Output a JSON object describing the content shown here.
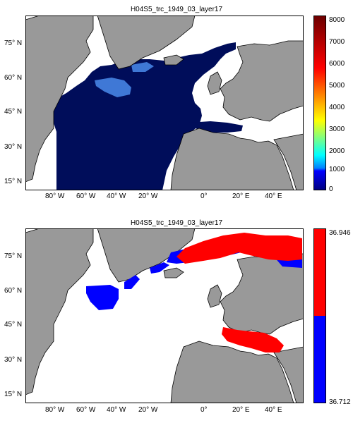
{
  "maps": [
    {
      "title": "H04S5_trc_1949_03_layer17",
      "lat_ticks": [
        "75° N",
        "60° N",
        "45° N",
        "30° N",
        "15° N"
      ],
      "lon_ticks": [
        "80° W",
        "60° W",
        "40° W",
        "20° W",
        "0°",
        "20° E",
        "40° E"
      ],
      "colorbar": {
        "type": "continuous",
        "ticks": [
          "8000",
          "7000",
          "6000",
          "5000",
          "4000",
          "3000",
          "2000",
          "1000",
          "0"
        ],
        "colormap": "jet"
      }
    },
    {
      "title": "H04S5_trc_1949_03_layer17",
      "lat_ticks": [
        "75° N",
        "60° N",
        "45° N",
        "30° N",
        "15° N"
      ],
      "lon_ticks": [
        "80° W",
        "60° W",
        "40° W",
        "20° W",
        "0°",
        "20° E",
        "40° E"
      ],
      "colorbar": {
        "type": "binary",
        "max_label": "36.946",
        "min_label": "36.712",
        "colors": [
          "#ff0000",
          "#0000ff"
        ]
      }
    }
  ],
  "colors": {
    "land": "#999999",
    "ocean_low": "#000d5a",
    "high": "#ff0000",
    "low": "#0000ff"
  }
}
